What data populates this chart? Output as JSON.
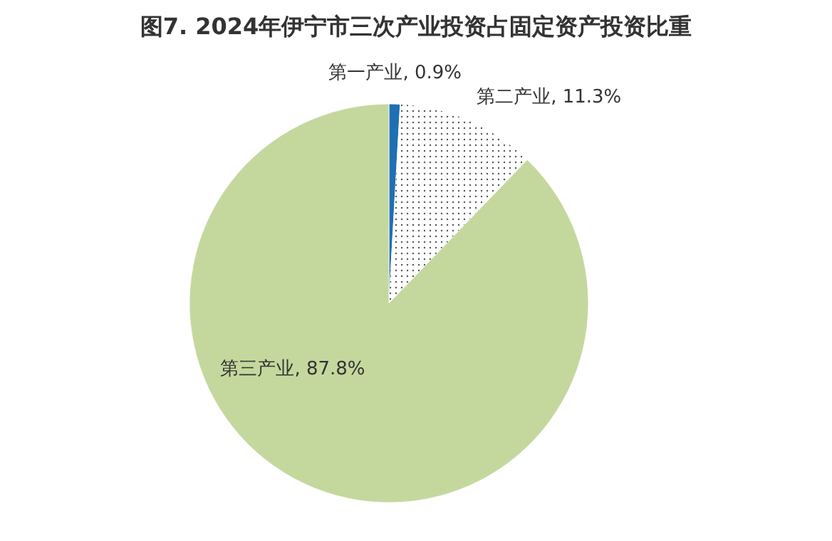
{
  "chart_data": {
    "type": "pie",
    "title": "图7. 2024年伊宁市三次产业投资占固定资产投资比重",
    "categories": [
      "第一产业",
      "第二产业",
      "第三产业"
    ],
    "values": [
      0.9,
      11.3,
      87.8
    ],
    "value_labels": [
      "0.9%",
      "11.3%",
      "87.8%"
    ],
    "colors": [
      "#1f6fb4",
      "#ffffff",
      "#c4d89e"
    ]
  }
}
